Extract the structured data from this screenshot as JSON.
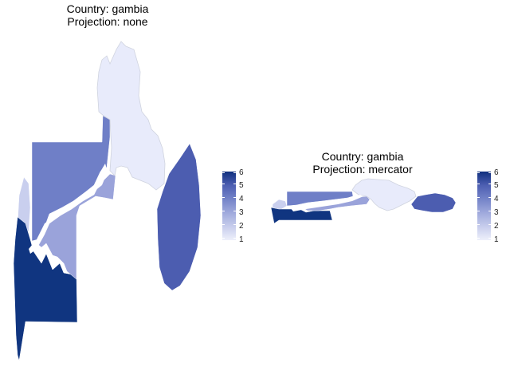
{
  "panels": [
    {
      "title_country": "Country: gambia",
      "title_projection": "Projection: none"
    },
    {
      "title_country": "Country: gambia",
      "title_projection": "Projection: mercator"
    }
  ],
  "legend": {
    "labels": [
      "1",
      "2",
      "3",
      "4",
      "5",
      "6"
    ]
  },
  "colors": {
    "level_1": "#e8ebfb",
    "level_2": "#c9cfee",
    "level_3": "#9aa3da",
    "level_4": "#6f7fc7",
    "level_5": "#4c5db0",
    "level_6": "#103580",
    "border": "#cfd3df"
  }
}
